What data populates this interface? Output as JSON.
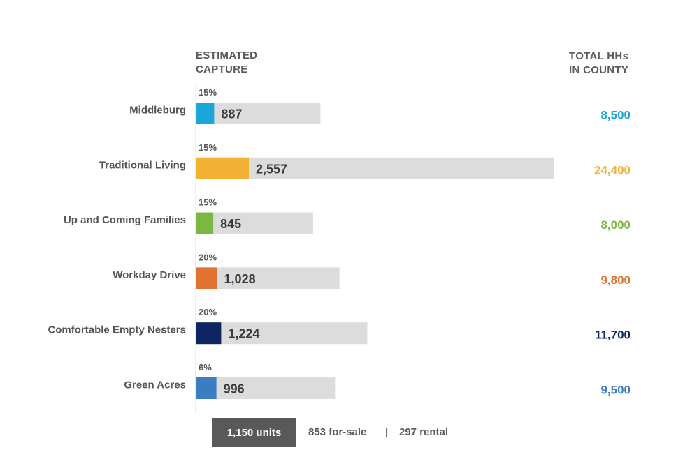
{
  "headers": {
    "capture": "ESTIMATED\nCAPTURE",
    "total": "TOTAL HHs\nIN COUNTY"
  },
  "footer": {
    "units": "1,150 units",
    "for_sale": "853 for-sale",
    "separator": "|",
    "rental": "297 rental"
  },
  "chart_data": {
    "type": "bar",
    "orientation": "horizontal",
    "categories": [
      "Middleburg",
      "Traditional Living",
      "Up and Coming Families",
      "Workday Drive",
      "Comfortable Empty Nesters",
      "Green Acres"
    ],
    "series": [
      {
        "name": "ESTIMATED CAPTURE",
        "values": [
          887,
          2557,
          845,
          1028,
          1224,
          996
        ],
        "value_labels": [
          "887",
          "2,557",
          "845",
          "1,028",
          "1,224",
          "996"
        ],
        "capture_percent": [
          15,
          15,
          15,
          20,
          20,
          6
        ],
        "capture_labels": [
          "15%",
          "15%",
          "15%",
          "20%",
          "20%",
          "6%"
        ]
      },
      {
        "name": "TOTAL HHs IN COUNTY",
        "values": [
          8500,
          24400,
          8000,
          9800,
          11700,
          9500
        ],
        "value_labels": [
          "8,500",
          "24,400",
          "8,000",
          "9,800",
          "11,700",
          "9,500"
        ]
      }
    ],
    "colors": [
      "#1ba6db",
      "#f3b133",
      "#7ab842",
      "#e07330",
      "#0d2661",
      "#3a7dc1"
    ],
    "background_bar_color": "#dcdcdc",
    "grid": false,
    "legend": "none"
  }
}
